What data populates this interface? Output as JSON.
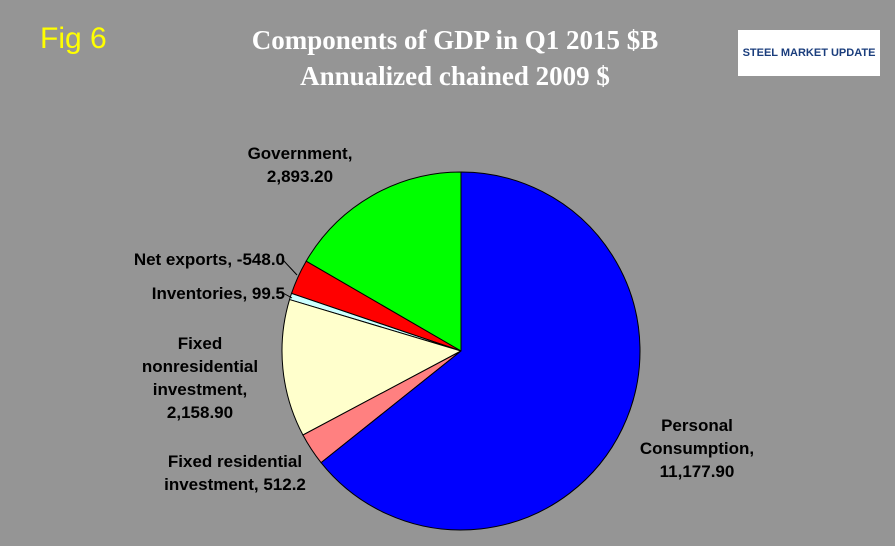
{
  "figure_label": "Fig 6",
  "logo": "STEEL MARKET UPDATE",
  "chart_data": {
    "type": "pie",
    "title": "Components of GDP in Q1 2015 $B",
    "subtitle": "Annualized chained 2009 $",
    "categories": [
      "Personal Consumption,",
      "Fixed residential investment,",
      "Fixed nonresidential investment,",
      "Inventories,",
      "Net exports,",
      "Government,"
    ],
    "values": [
      11177.9,
      512.2,
      2158.9,
      99.5,
      -548.0,
      2893.2
    ],
    "value_labels": [
      "11,177.90",
      "512.2",
      "2,158.90",
      "99.5",
      "-548.0",
      "2,893.20"
    ],
    "colors": [
      "#0000ff",
      "#ff8080",
      "#ffffcc",
      "#ccffff",
      "#ff0000",
      "#00ff00"
    ]
  }
}
